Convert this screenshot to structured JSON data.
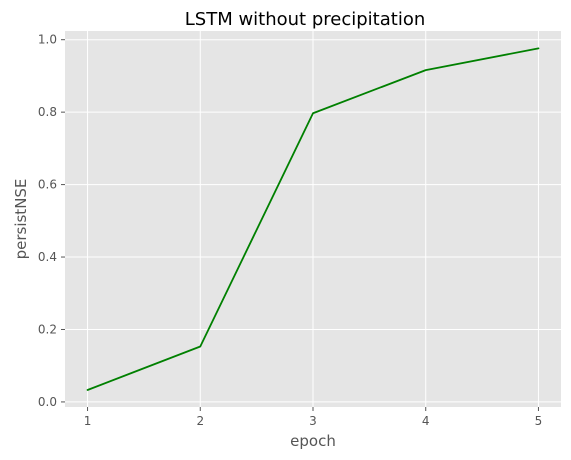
{
  "chart_data": {
    "type": "line",
    "title": "LSTM without precipitation",
    "xlabel": "epoch",
    "ylabel": "persistNSE",
    "x": [
      1,
      2,
      3,
      4,
      5
    ],
    "series": [
      {
        "values": [
          0.033,
          0.153,
          0.797,
          0.916,
          0.976
        ],
        "color": "#008000"
      }
    ],
    "xticks": [
      1,
      2,
      3,
      4,
      5
    ],
    "yticks": [
      0.0,
      0.2,
      0.4,
      0.6,
      0.8,
      1.0
    ],
    "xlim": [
      0.8,
      5.2
    ],
    "ylim": [
      -0.014,
      1.024
    ],
    "grid": true,
    "style": {
      "background_color": "#e5e5e5",
      "grid_color": "#ffffff",
      "text_color": "#555555",
      "title_color": "#000000"
    }
  }
}
